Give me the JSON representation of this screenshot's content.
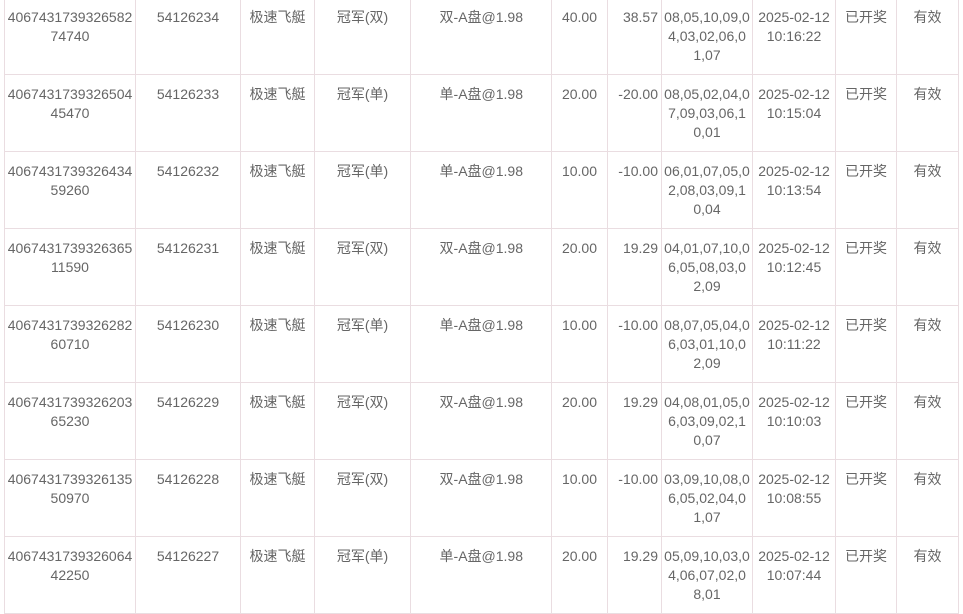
{
  "rows": [
    {
      "order_id": "406743173932658274740",
      "issue": "54126234",
      "game": "极速飞艇",
      "play": "冠军(双)",
      "bet": "双-A盘@1.98",
      "amount": "40.00",
      "profit": "38.57",
      "result": "08,05,10,09,04,03,02,06,01,07",
      "date": "2025-02-12",
      "time": "10:16:22",
      "status": "已开奖",
      "valid": "有效"
    },
    {
      "order_id": "406743173932650445470",
      "issue": "54126233",
      "game": "极速飞艇",
      "play": "冠军(单)",
      "bet": "单-A盘@1.98",
      "amount": "20.00",
      "profit": "-20.00",
      "result": "08,05,02,04,07,09,03,06,10,01",
      "date": "2025-02-12",
      "time": "10:15:04",
      "status": "已开奖",
      "valid": "有效"
    },
    {
      "order_id": "406743173932643459260",
      "issue": "54126232",
      "game": "极速飞艇",
      "play": "冠军(单)",
      "bet": "单-A盘@1.98",
      "amount": "10.00",
      "profit": "-10.00",
      "result": "06,01,07,05,02,08,03,09,10,04",
      "date": "2025-02-12",
      "time": "10:13:54",
      "status": "已开奖",
      "valid": "有效"
    },
    {
      "order_id": "406743173932636511590",
      "issue": "54126231",
      "game": "极速飞艇",
      "play": "冠军(双)",
      "bet": "双-A盘@1.98",
      "amount": "20.00",
      "profit": "19.29",
      "result": "04,01,07,10,06,05,08,03,02,09",
      "date": "2025-02-12",
      "time": "10:12:45",
      "status": "已开奖",
      "valid": "有效"
    },
    {
      "order_id": "406743173932628260710",
      "issue": "54126230",
      "game": "极速飞艇",
      "play": "冠军(单)",
      "bet": "单-A盘@1.98",
      "amount": "10.00",
      "profit": "-10.00",
      "result": "08,07,05,04,06,03,01,10,02,09",
      "date": "2025-02-12",
      "time": "10:11:22",
      "status": "已开奖",
      "valid": "有效"
    },
    {
      "order_id": "406743173932620365230",
      "issue": "54126229",
      "game": "极速飞艇",
      "play": "冠军(双)",
      "bet": "双-A盘@1.98",
      "amount": "20.00",
      "profit": "19.29",
      "result": "04,08,01,05,06,03,09,02,10,07",
      "date": "2025-02-12",
      "time": "10:10:03",
      "status": "已开奖",
      "valid": "有效"
    },
    {
      "order_id": "406743173932613550970",
      "issue": "54126228",
      "game": "极速飞艇",
      "play": "冠军(双)",
      "bet": "双-A盘@1.98",
      "amount": "10.00",
      "profit": "-10.00",
      "result": "03,09,10,08,06,05,02,04,01,07",
      "date": "2025-02-12",
      "time": "10:08:55",
      "status": "已开奖",
      "valid": "有效"
    },
    {
      "order_id": "406743173932606442250",
      "issue": "54126227",
      "game": "极速飞艇",
      "play": "冠军(单)",
      "bet": "单-A盘@1.98",
      "amount": "20.00",
      "profit": "19.29",
      "result": "05,09,10,03,04,06,07,02,08,01",
      "date": "2025-02-12",
      "time": "10:07:44",
      "status": "已开奖",
      "valid": "有效"
    }
  ]
}
